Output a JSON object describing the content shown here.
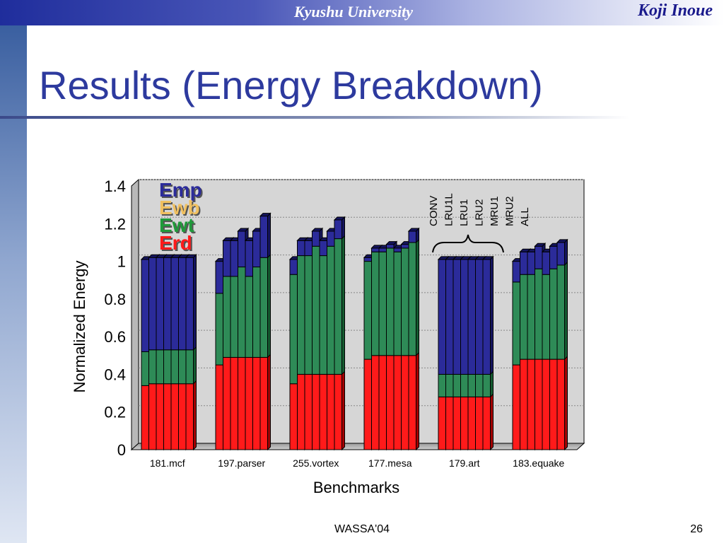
{
  "header": {
    "university": "Kyushu University",
    "author": "Koji Inoue"
  },
  "slide": {
    "title": "Results (Energy Breakdown)",
    "footer_center": "WASSA'04",
    "page_number": "26"
  },
  "colors": {
    "Erd": "#ff1a1a",
    "Ewt": "#2e8b57",
    "Ewb": "#f0c060",
    "Emp": "#2b2b9a"
  },
  "chart_data": {
    "type": "bar",
    "stacked": true,
    "xlabel": "Benchmarks",
    "ylabel": "Normalized Energy",
    "ylim": [
      0,
      1.4
    ],
    "yticks": [
      "0",
      "0.2",
      "0.4",
      "0.6",
      "0.8",
      "1",
      "1.2",
      "1.4"
    ],
    "grid": true,
    "configurations": [
      "CONV",
      "LRU1L",
      "LRU1",
      "LRU2",
      "MRU1",
      "MRU2",
      "ALL"
    ],
    "legend": [
      {
        "name": "Emp",
        "color": "#2b2b9a"
      },
      {
        "name": "Ewb",
        "color": "#f0c060"
      },
      {
        "name": "Ewt",
        "color": "#1f9a3a"
      },
      {
        "name": "Erd",
        "color": "#ff1a1a"
      }
    ],
    "benchmarks": [
      {
        "name": "181.mcf",
        "Erd": [
          0.34,
          0.35,
          0.35,
          0.35,
          0.35,
          0.35,
          0.35
        ],
        "Ewt": [
          0.18,
          0.18,
          0.18,
          0.18,
          0.18,
          0.18,
          0.18
        ],
        "Ewb": [
          0,
          0,
          0,
          0,
          0,
          0,
          0
        ],
        "Emp": [
          0.49,
          0.49,
          0.49,
          0.49,
          0.49,
          0.49,
          0.49
        ]
      },
      {
        "name": "197.parser",
        "Erd": [
          0.45,
          0.49,
          0.49,
          0.49,
          0.49,
          0.49,
          0.49
        ],
        "Ewt": [
          0.38,
          0.43,
          0.43,
          0.48,
          0.43,
          0.48,
          0.53
        ],
        "Ewb": [
          0,
          0,
          0,
          0,
          0,
          0,
          0
        ],
        "Emp": [
          0.17,
          0.19,
          0.19,
          0.19,
          0.19,
          0.19,
          0.22
        ]
      },
      {
        "name": "255.vortex",
        "Erd": [
          0.35,
          0.4,
          0.4,
          0.4,
          0.4,
          0.4,
          0.4
        ],
        "Ewt": [
          0.58,
          0.63,
          0.63,
          0.68,
          0.63,
          0.68,
          0.72
        ],
        "Ewb": [
          0,
          0,
          0,
          0,
          0,
          0,
          0
        ],
        "Emp": [
          0.08,
          0.08,
          0.08,
          0.08,
          0.08,
          0.08,
          0.1
        ]
      },
      {
        "name": "177.mesa",
        "Erd": [
          0.48,
          0.5,
          0.5,
          0.5,
          0.5,
          0.5,
          0.5
        ],
        "Ewt": [
          0.52,
          0.55,
          0.55,
          0.57,
          0.55,
          0.57,
          0.6
        ],
        "Ewb": [
          0,
          0,
          0,
          0,
          0,
          0,
          0
        ],
        "Emp": [
          0.02,
          0.02,
          0.02,
          0.02,
          0.02,
          0.02,
          0.06
        ]
      },
      {
        "name": "179.art",
        "Erd": [
          0.28,
          0.28,
          0.28,
          0.28,
          0.28,
          0.28,
          0.28
        ],
        "Ewt": [
          0.12,
          0.12,
          0.12,
          0.12,
          0.12,
          0.12,
          0.12
        ],
        "Ewb": [
          0,
          0,
          0,
          0,
          0,
          0,
          0
        ],
        "Emp": [
          0.61,
          0.61,
          0.61,
          0.61,
          0.61,
          0.61,
          0.61
        ]
      },
      {
        "name": "183.equake",
        "Erd": [
          0.45,
          0.48,
          0.48,
          0.48,
          0.48,
          0.48,
          0.48
        ],
        "Ewt": [
          0.44,
          0.45,
          0.45,
          0.48,
          0.45,
          0.48,
          0.5
        ],
        "Ewb": [
          0,
          0,
          0,
          0,
          0,
          0,
          0
        ],
        "Emp": [
          0.11,
          0.12,
          0.12,
          0.12,
          0.12,
          0.12,
          0.12
        ]
      }
    ]
  }
}
